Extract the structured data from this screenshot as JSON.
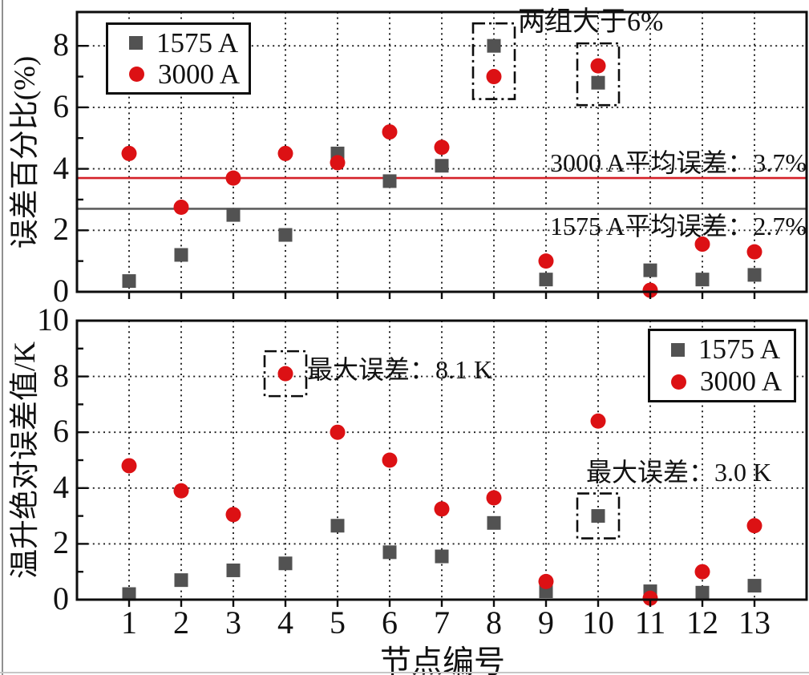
{
  "chart_data": {
    "type": "scatter",
    "grid": "dotted",
    "x_axis": {
      "label": "节点编号",
      "ticks": [
        "1",
        "2",
        "3",
        "4",
        "5",
        "6",
        "7",
        "8",
        "9",
        "10",
        "11",
        "12",
        "13"
      ]
    },
    "panels": [
      {
        "ylabel": "误差百分比(%)",
        "ylim": [
          0,
          9.1
        ],
        "yticks": [
          "0",
          "2",
          "4",
          "6",
          "8"
        ],
        "series": [
          {
            "name": "1575 A",
            "marker": "square",
            "color": "#525252",
            "values": [
              0.35,
              1.2,
              2.5,
              1.85,
              4.5,
              3.6,
              4.1,
              8.0,
              0.4,
              6.8,
              0.7,
              0.4,
              0.55
            ]
          },
          {
            "name": "3000 A",
            "marker": "circle",
            "color": "#dc1114",
            "values": [
              4.5,
              2.75,
              3.7,
              4.5,
              4.2,
              5.2,
              4.7,
              7.0,
              1.0,
              7.35,
              0.05,
              1.55,
              1.3
            ]
          }
        ],
        "reference_lines": [
          {
            "label": "3000 A平均误差：3.7%",
            "value": 3.7,
            "color": "#d42128"
          },
          {
            "label": "1575 A平均误差：2.7%",
            "value": 2.7,
            "color": "#5e5e5e"
          }
        ],
        "annotations": [
          {
            "text": "两组大于6%"
          }
        ],
        "highlight_boxes": [
          {
            "node": 8,
            "series": "both"
          },
          {
            "node": 10,
            "series": "both"
          }
        ],
        "legend": {
          "position": "top-left"
        }
      },
      {
        "ylabel": "温升绝对误差值/K",
        "ylim": [
          0,
          10
        ],
        "yticks": [
          "0",
          "2",
          "4",
          "6",
          "8",
          "10"
        ],
        "series": [
          {
            "name": "1575 A",
            "marker": "square",
            "color": "#525252",
            "values": [
              0.2,
              0.7,
              1.05,
              1.3,
              2.65,
              1.7,
              1.55,
              2.75,
              0.3,
              3.0,
              0.3,
              0.25,
              0.5
            ]
          },
          {
            "name": "3000 A",
            "marker": "circle",
            "color": "#dc1114",
            "values": [
              4.8,
              3.9,
              3.05,
              8.1,
              6.0,
              5.0,
              3.25,
              3.65,
              0.65,
              6.4,
              0.05,
              1.0,
              2.65
            ]
          }
        ],
        "reference_lines": [],
        "annotations": [
          {
            "text": "最大误差：8.1 K",
            "node": 4
          },
          {
            "text": "最大误差：3.0 K",
            "node": 10
          }
        ],
        "highlight_boxes": [
          {
            "node": 4,
            "series": "3000 A"
          },
          {
            "node": 10,
            "series": "1575 A"
          }
        ],
        "legend": {
          "position": "top-right"
        }
      }
    ],
    "colors": {
      "series_1575": "#525252",
      "series_3000": "#dc1114",
      "avg_line_3000": "#d42128",
      "avg_line_1575": "#5e5e5e",
      "grid": "#1c1c1c",
      "frame": "#0d0d0d"
    }
  }
}
